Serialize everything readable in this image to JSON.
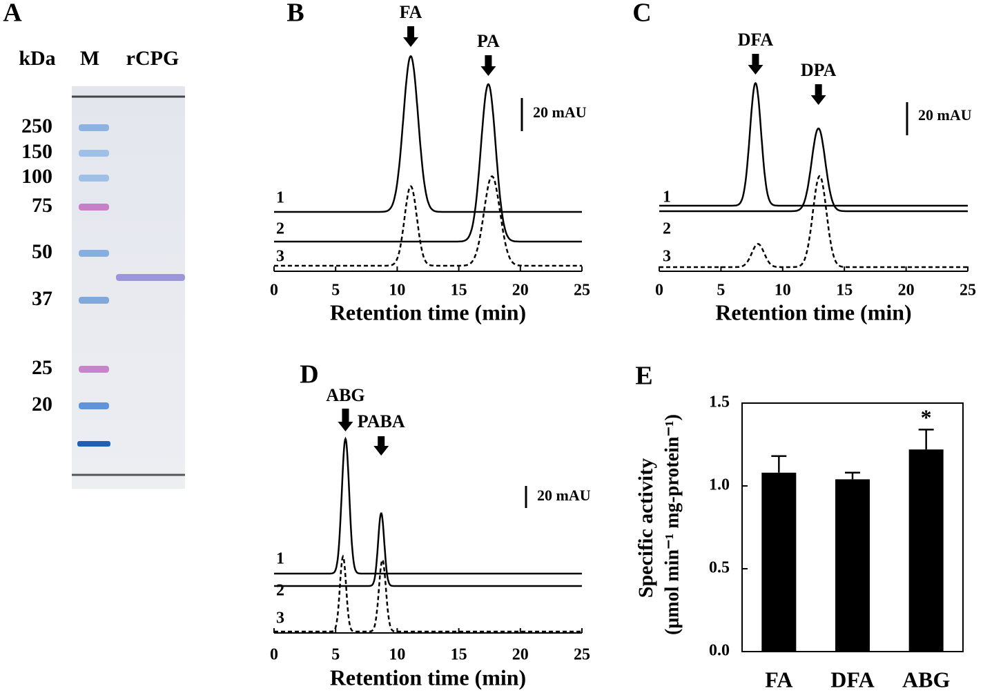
{
  "chart_data": [
    {
      "type": "gel",
      "panel": "A",
      "headers": [
        "kDa",
        "M",
        "rCPG"
      ],
      "markers": [
        250,
        150,
        100,
        75,
        50,
        37,
        25,
        20
      ]
    },
    {
      "type": "chromatogram",
      "panel": "B",
      "xlim": [
        0,
        25
      ],
      "xticks": [
        0,
        5,
        10,
        15,
        20,
        25
      ],
      "xlabel": "Retention time (min)",
      "scale_bar": {
        "value": 20,
        "label": "20 mAU"
      },
      "traces": [
        {
          "name": "1",
          "dashed": false,
          "peaks": [
            {
              "time": 11.1,
              "height": 94,
              "width": 0.6
            }
          ]
        },
        {
          "name": "2",
          "dashed": false,
          "peaks": [
            {
              "time": 17.4,
              "height": 95,
              "width": 0.6
            }
          ]
        },
        {
          "name": "3",
          "dashed": true,
          "peaks": [
            {
              "time": 11.1,
              "height": 48,
              "width": 0.5
            },
            {
              "time": 17.7,
              "height": 54,
              "width": 0.65
            }
          ]
        }
      ],
      "annotations": [
        {
          "text": "FA",
          "time": 11.1
        },
        {
          "text": "PA",
          "time": 17.4
        }
      ]
    },
    {
      "type": "chromatogram",
      "panel": "C",
      "xlim": [
        0,
        25
      ],
      "xticks": [
        0,
        5,
        10,
        15,
        20,
        25
      ],
      "xlabel": "Retention time (min)",
      "scale_bar": {
        "value": 20,
        "label": "20 mAU"
      },
      "traces": [
        {
          "name": "1",
          "dashed": false,
          "peaks": [
            {
              "time": 7.8,
              "height": 74,
              "width": 0.45
            }
          ]
        },
        {
          "name": "2",
          "dashed": false,
          "peaks": [
            {
              "time": 12.9,
              "height": 50,
              "width": 0.55
            }
          ]
        },
        {
          "name": "3",
          "dashed": true,
          "peaks": [
            {
              "time": 8.0,
              "height": 14,
              "width": 0.5
            },
            {
              "time": 13.0,
              "height": 55,
              "width": 0.55
            }
          ]
        }
      ],
      "annotations": [
        {
          "text": "DFA",
          "time": 7.8
        },
        {
          "text": "DPA",
          "time": 12.9
        }
      ]
    },
    {
      "type": "chromatogram",
      "panel": "D",
      "xlim": [
        0,
        25
      ],
      "xticks": [
        0,
        5,
        10,
        15,
        20,
        25
      ],
      "xlabel": "Retention time (min)",
      "scale_bar": {
        "value": 20,
        "label": "20 mAU"
      },
      "traces": [
        {
          "name": "1",
          "dashed": false,
          "peaks": [
            {
              "time": 5.8,
              "height": 122,
              "width": 0.3
            }
          ]
        },
        {
          "name": "2",
          "dashed": false,
          "peaks": [
            {
              "time": 8.7,
              "height": 66,
              "width": 0.25
            }
          ]
        },
        {
          "name": "3",
          "dashed": true,
          "peaks": [
            {
              "time": 5.6,
              "height": 68,
              "width": 0.25
            },
            {
              "time": 8.8,
              "height": 65,
              "width": 0.28
            }
          ]
        }
      ],
      "annotations": [
        {
          "text": "ABG",
          "time": 5.8
        },
        {
          "text": "PABA",
          "time": 8.7
        }
      ]
    },
    {
      "type": "bar",
      "panel": "E",
      "categories": [
        "FA",
        "DFA",
        "ABG"
      ],
      "values": [
        1.08,
        1.04,
        1.22
      ],
      "errors": [
        0.1,
        0.04,
        0.12
      ],
      "color": "#000000",
      "ylim": [
        0,
        1.5
      ],
      "yticks": [
        {
          "value": 0,
          "label": "0.0"
        },
        {
          "value": 0.5,
          "label": "0.5"
        },
        {
          "value": 1,
          "label": "1.0"
        },
        {
          "value": 1.5,
          "label": "1.5"
        }
      ],
      "ylabel": "Specific activity",
      "ylabel_units": "(μmol min⁻¹ mg-protein⁻¹)",
      "annotations": [
        {
          "text": "*",
          "category": "ABG"
        }
      ]
    }
  ]
}
